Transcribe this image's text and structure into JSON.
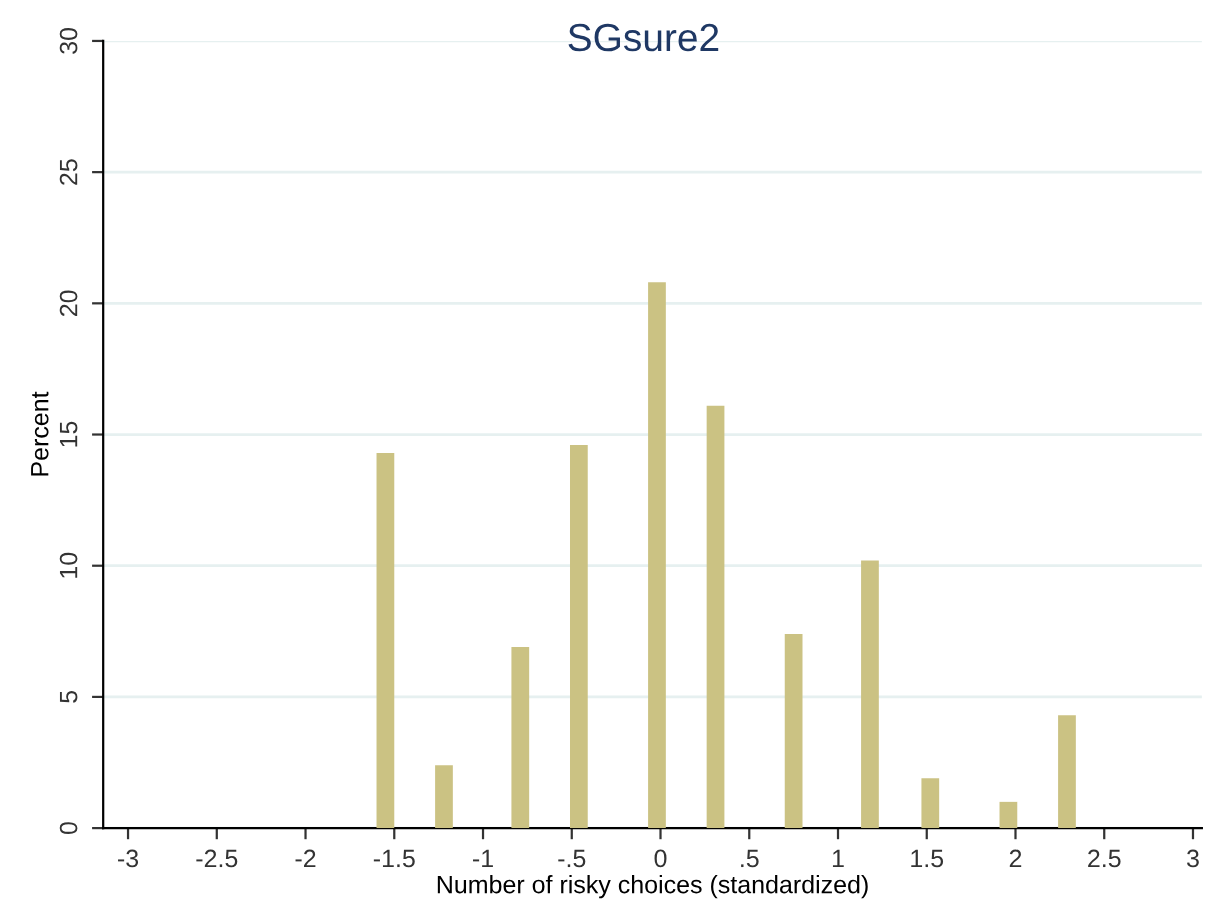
{
  "chart_data": {
    "type": "bar",
    "title": "SGsure2",
    "xlabel": "Number of risky choices (standardized)",
    "ylabel": "Percent",
    "x": [
      -1.55,
      -1.22,
      -0.79,
      -0.46,
      -0.02,
      0.31,
      0.75,
      1.18,
      1.52,
      1.96,
      2.29
    ],
    "values": [
      14.3,
      2.4,
      6.9,
      14.6,
      20.8,
      16.1,
      7.4,
      10.2,
      1.9,
      1.0,
      4.3
    ],
    "color": "#cbc283",
    "xlim": [
      -3.14,
      3.05
    ],
    "xticks": [
      -3,
      -2.5,
      -2,
      -1.5,
      -1,
      {
        "value": -0.5,
        "label": "-.5"
      },
      0,
      {
        "value": 0.5,
        "label": ".5"
      },
      1,
      1.5,
      2,
      2.5,
      3
    ],
    "ylim": [
      0,
      30
    ],
    "yticks": [
      0,
      5,
      10,
      15,
      20,
      25,
      30
    ],
    "grid": "y",
    "legend": false
  }
}
